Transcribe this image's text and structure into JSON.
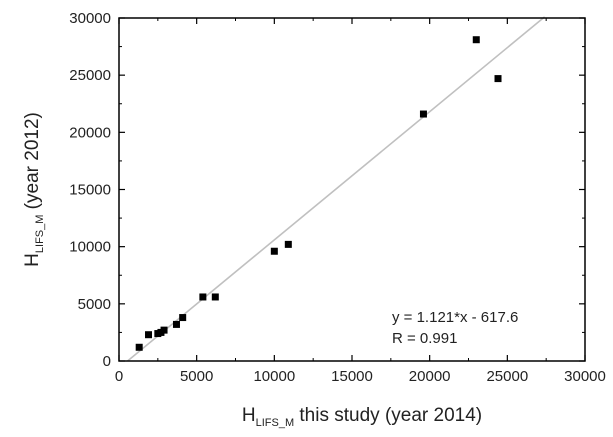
{
  "chart_data": {
    "type": "scatter",
    "title": "",
    "xlabel": {
      "main": "H",
      "subscript": "LIFS_M",
      "suffix": " this study (year 2014)"
    },
    "ylabel": {
      "main": "H",
      "subscript": "LIFS_M",
      "suffix": " (year 2012)"
    },
    "xlim": [
      0,
      30000
    ],
    "ylim": [
      0,
      30000
    ],
    "x_ticks": [
      0,
      5000,
      10000,
      15000,
      20000,
      25000,
      30000
    ],
    "y_ticks": [
      0,
      5000,
      10000,
      15000,
      20000,
      25000,
      30000
    ],
    "x_tick_labels": [
      "0",
      "5000",
      "10000",
      "15000",
      "20000",
      "25000",
      "30000"
    ],
    "y_tick_labels": [
      "0",
      "5000",
      "10000",
      "15000",
      "20000",
      "25000",
      "30000"
    ],
    "grid": false,
    "points": [
      {
        "x": 1300,
        "y": 1200
      },
      {
        "x": 1900,
        "y": 2300
      },
      {
        "x": 2500,
        "y": 2400
      },
      {
        "x": 2700,
        "y": 2500
      },
      {
        "x": 2900,
        "y": 2700
      },
      {
        "x": 3700,
        "y": 3200
      },
      {
        "x": 4100,
        "y": 3800
      },
      {
        "x": 5400,
        "y": 5600
      },
      {
        "x": 6200,
        "y": 5600
      },
      {
        "x": 10000,
        "y": 9600
      },
      {
        "x": 10900,
        "y": 10200
      },
      {
        "x": 19600,
        "y": 21600
      },
      {
        "x": 23000,
        "y": 28100
      },
      {
        "x": 24400,
        "y": 24700
      }
    ],
    "fit_line": {
      "slope": 1.121,
      "intercept": -617.6,
      "x_range": [
        550,
        27400
      ],
      "color": "#c0c0c0"
    },
    "marker_color": "#000000",
    "annotations": {
      "equation": "y = 1.121*x - 617.6",
      "r_value": "R = 0.991"
    }
  }
}
